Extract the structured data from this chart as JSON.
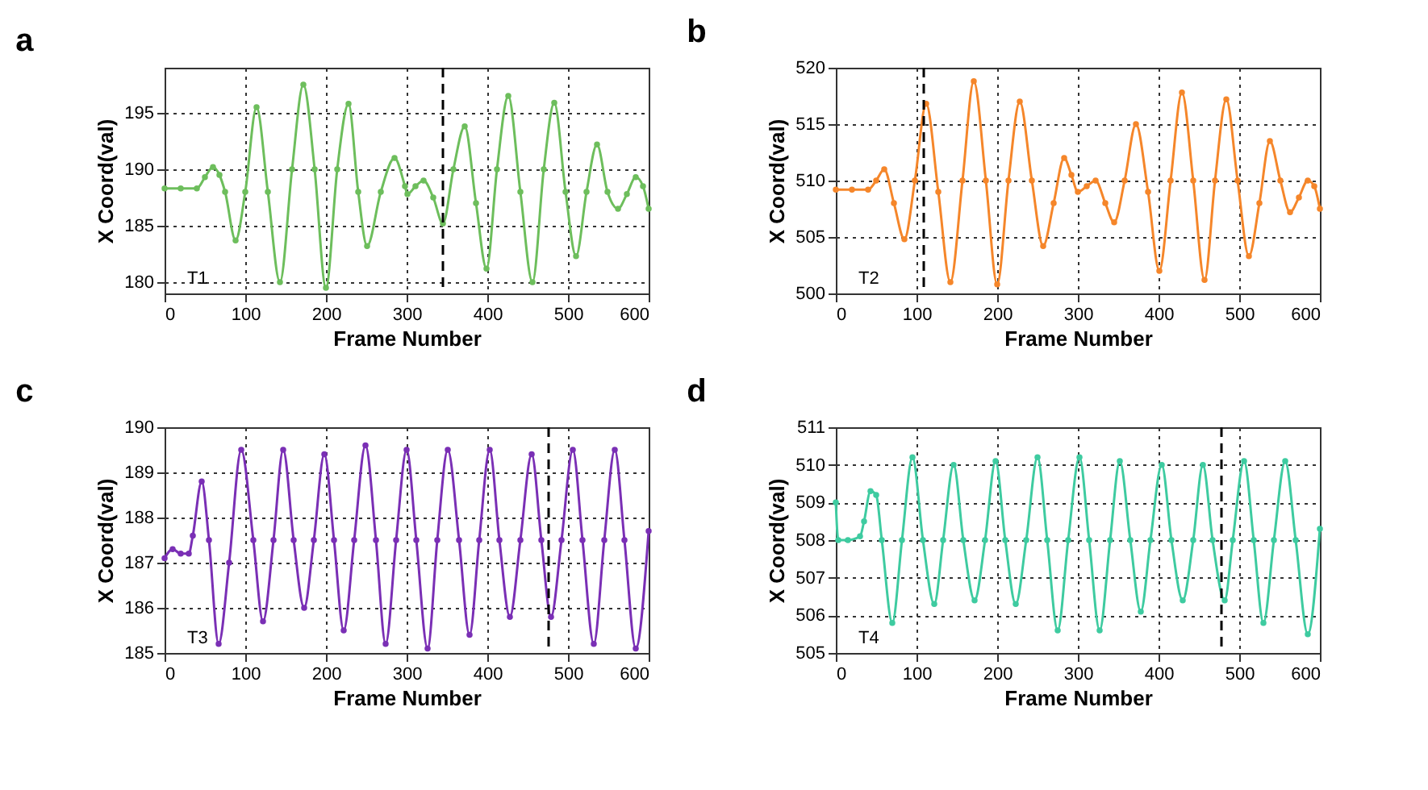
{
  "chart_data": [
    {
      "type": "line",
      "title": "a",
      "xlabel": "Frame Number",
      "ylabel": "X Coord(val)",
      "annotations": [
        "T1"
      ],
      "xlim": [
        0,
        600
      ],
      "xticks": [
        0,
        100,
        200,
        300,
        400,
        500,
        600
      ],
      "ylim": [
        179,
        199
      ],
      "yticks": [
        180,
        185,
        190,
        195
      ],
      "grid": true,
      "marker": "circle",
      "line_style": "solid",
      "ref_lines": [
        {
          "axis": "x",
          "value": 345,
          "line_style": "dashed",
          "color": "#000000"
        }
      ],
      "series": [
        {
          "color": "#6dbe5c",
          "x": [
            0,
            20,
            40,
            50,
            60,
            68,
            75,
            88,
            100,
            114,
            128,
            143,
            158,
            172,
            186,
            200,
            214,
            228,
            240,
            251,
            268,
            285,
            298,
            301,
            311,
            321,
            333,
            345,
            358,
            372,
            386,
            399,
            412,
            426,
            441,
            456,
            470,
            483,
            497,
            510,
            523,
            536,
            549,
            562,
            573,
            584,
            593,
            600
          ],
          "values": [
            188.3,
            188.3,
            188.3,
            189.3,
            190.2,
            189.5,
            188,
            183.7,
            188,
            195.5,
            188,
            180,
            190,
            197.5,
            190,
            179.5,
            190,
            195.8,
            188,
            183.2,
            188,
            191,
            188.5,
            187.8,
            188.5,
            189,
            187.5,
            185.2,
            190,
            193.8,
            187,
            181.2,
            190,
            196.5,
            188,
            180,
            190,
            195.9,
            188,
            182.3,
            188,
            192.2,
            188,
            186.5,
            187.8,
            189.3,
            188.5,
            186.5
          ]
        }
      ]
    },
    {
      "type": "line",
      "title": "b",
      "xlabel": "Frame Number",
      "ylabel": "X Coord(val)",
      "annotations": [
        "T2"
      ],
      "xlim": [
        0,
        600
      ],
      "xticks": [
        0,
        100,
        200,
        300,
        400,
        500,
        600
      ],
      "ylim": [
        500,
        520
      ],
      "yticks": [
        500,
        505,
        510,
        515,
        520
      ],
      "grid": true,
      "marker": "circle",
      "line_style": "solid",
      "ref_lines": [
        {
          "axis": "x",
          "value": 109,
          "line_style": "dashed",
          "color": "#000000"
        }
      ],
      "series": [
        {
          "color": "#f5862a",
          "x": [
            0,
            20,
            40,
            50,
            60,
            72,
            85,
            98,
            112,
            127,
            142,
            157,
            171,
            186,
            200,
            214,
            228,
            243,
            257,
            270,
            283,
            292,
            300,
            311,
            322,
            334,
            345,
            358,
            372,
            387,
            401,
            415,
            429,
            443,
            457,
            470,
            484,
            498,
            512,
            525,
            538,
            551,
            563,
            574,
            585,
            593,
            600
          ],
          "values": [
            509.2,
            509.2,
            509.2,
            510,
            511,
            508,
            504.8,
            510,
            516.8,
            509,
            501,
            510,
            518.8,
            510,
            500.8,
            510,
            517,
            510,
            504.2,
            508,
            512,
            510.5,
            509,
            509.5,
            510,
            508,
            506.3,
            510,
            515,
            509,
            502,
            510,
            517.8,
            510,
            501.2,
            510,
            517.2,
            510,
            503.3,
            508,
            513.5,
            510,
            507.2,
            508.5,
            510,
            509.5,
            507.5
          ]
        }
      ]
    },
    {
      "type": "line",
      "title": "c",
      "xlabel": "Frame Number",
      "ylabel": "X Coord(val)",
      "annotations": [
        "T3"
      ],
      "xlim": [
        0,
        600
      ],
      "xticks": [
        0,
        100,
        200,
        300,
        400,
        500,
        600
      ],
      "ylim": [
        185,
        190
      ],
      "yticks": [
        185,
        186,
        187,
        188,
        189,
        190
      ],
      "grid": true,
      "marker": "circle",
      "line_style": "solid",
      "ref_lines": [
        {
          "axis": "x",
          "value": 476,
          "line_style": "dashed",
          "color": "#000000"
        }
      ],
      "series": [
        {
          "color": "#7a2fb5",
          "x": [
            0,
            10,
            20,
            30,
            35,
            46,
            55,
            67,
            80,
            95,
            110,
            122,
            135,
            147,
            160,
            173,
            185,
            198,
            210,
            222,
            235,
            249,
            262,
            274,
            287,
            300,
            312,
            326,
            338,
            351,
            365,
            378,
            390,
            403,
            415,
            428,
            441,
            455,
            467,
            479,
            492,
            506,
            518,
            532,
            545,
            558,
            570,
            584,
            600
          ],
          "values": [
            187.1,
            187.3,
            187.2,
            187.2,
            187.6,
            188.8,
            187.5,
            185.2,
            187,
            189.5,
            187.5,
            185.7,
            187.5,
            189.5,
            187.5,
            186,
            187.5,
            189.4,
            187.5,
            185.5,
            187.5,
            189.6,
            187.5,
            185.2,
            187.5,
            189.5,
            187.5,
            185.1,
            187.5,
            189.5,
            187.5,
            185.4,
            187.5,
            189.5,
            187.5,
            185.8,
            187.5,
            189.4,
            187.5,
            185.8,
            187.5,
            189.5,
            187.5,
            185.2,
            187.5,
            189.5,
            187.5,
            185.1,
            187.7
          ]
        }
      ]
    },
    {
      "type": "line",
      "title": "d",
      "xlabel": "Frame Number",
      "ylabel": "X Coord(val)",
      "annotations": [
        "T4"
      ],
      "xlim": [
        0,
        600
      ],
      "xticks": [
        0,
        100,
        200,
        300,
        400,
        500,
        600
      ],
      "ylim": [
        505,
        511
      ],
      "yticks": [
        505,
        506,
        507,
        508,
        509,
        510,
        511
      ],
      "grid": true,
      "marker": "circle",
      "line_style": "solid",
      "ref_lines": [
        {
          "axis": "x",
          "value": 478,
          "line_style": "dashed",
          "color": "#000000"
        }
      ],
      "series": [
        {
          "color": "#3ecba0",
          "x": [
            0,
            3,
            15,
            30,
            35,
            43,
            50,
            57,
            70,
            82,
            95,
            108,
            122,
            133,
            146,
            158,
            172,
            185,
            198,
            210,
            223,
            236,
            250,
            262,
            275,
            288,
            302,
            314,
            327,
            340,
            352,
            365,
            378,
            390,
            404,
            416,
            430,
            443,
            455,
            467,
            482,
            492,
            506,
            518,
            530,
            543,
            557,
            570,
            585,
            600
          ],
          "values": [
            509,
            508,
            508,
            508.1,
            508.5,
            509.3,
            509.2,
            508,
            505.8,
            508,
            510.2,
            508,
            506.3,
            508,
            510,
            508,
            506.4,
            508,
            510.1,
            508,
            506.3,
            508,
            510.2,
            508,
            505.6,
            508,
            510.2,
            508,
            505.6,
            508,
            510.1,
            508,
            506.1,
            508,
            510,
            508,
            506.4,
            508,
            510,
            508,
            506.4,
            508,
            510.1,
            508,
            505.8,
            508,
            510.1,
            508,
            505.5,
            508.3
          ]
        }
      ]
    }
  ]
}
